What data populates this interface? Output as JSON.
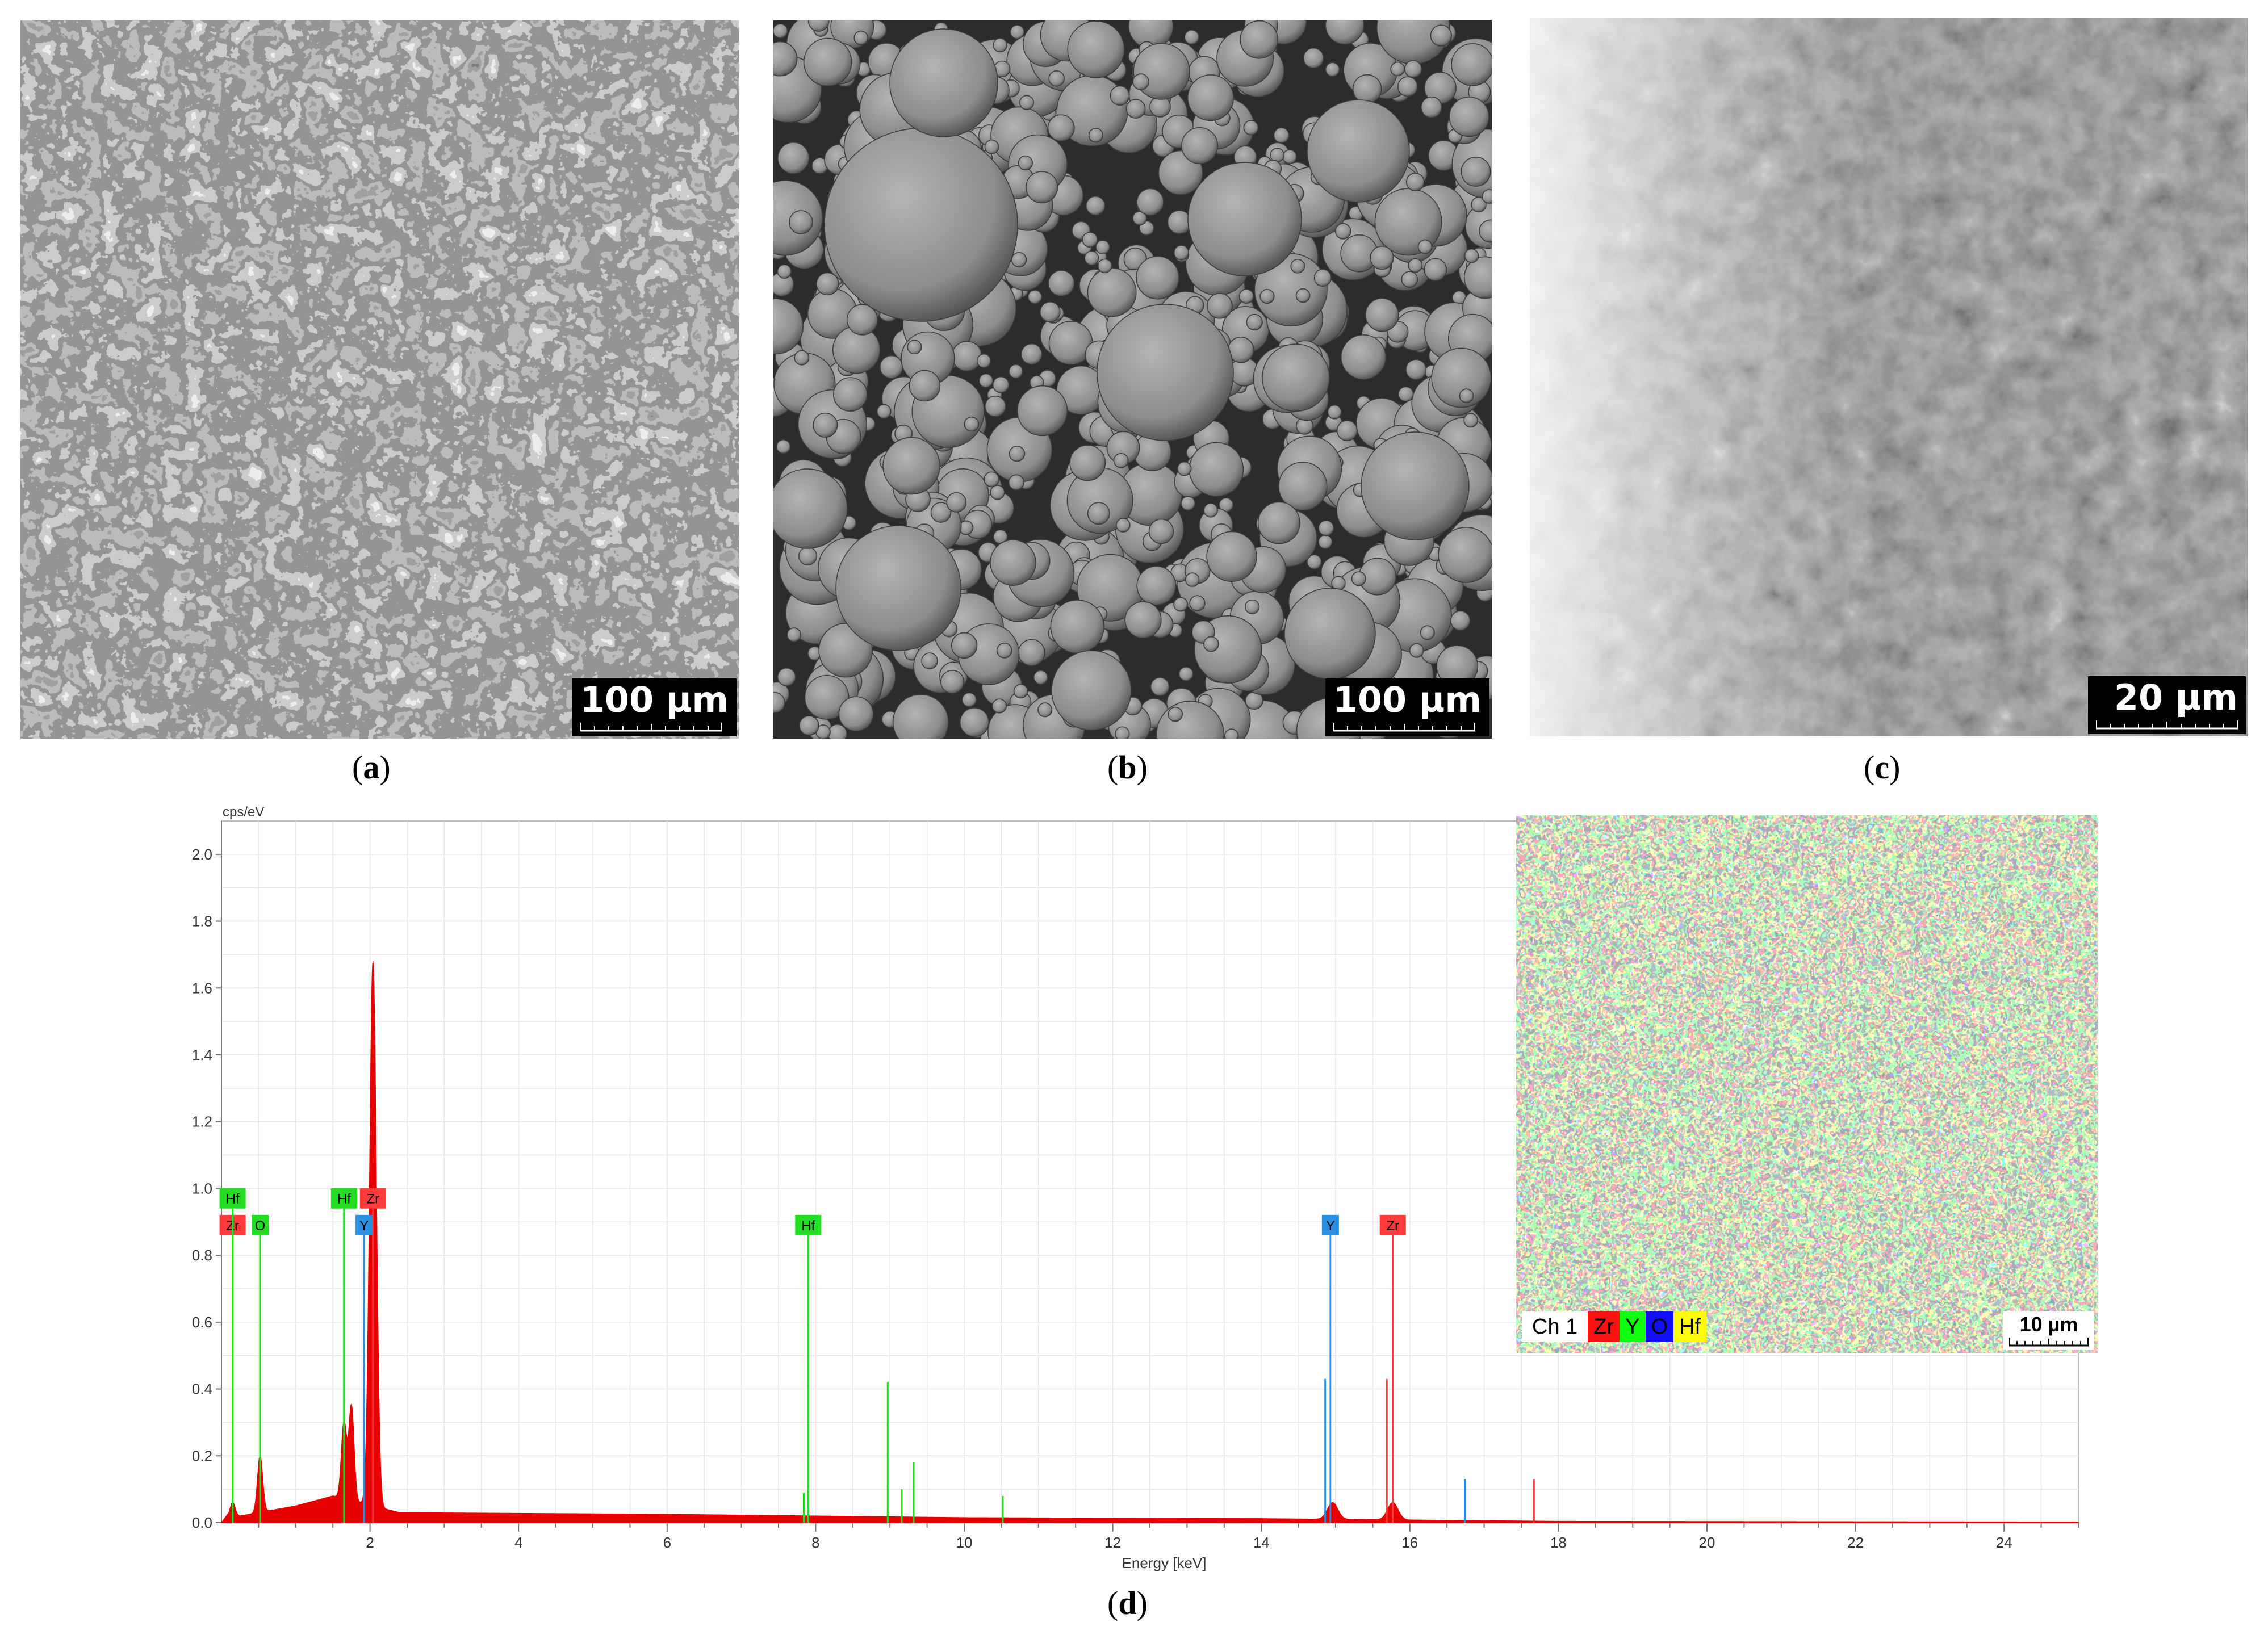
{
  "panels": [
    {
      "id": "a",
      "caption": "a",
      "scale_label": "100 µm"
    },
    {
      "id": "b",
      "caption": "b",
      "scale_label": "100 µm"
    },
    {
      "id": "c",
      "caption": "c",
      "scale_label": "20 µm"
    },
    {
      "id": "d",
      "caption": "d"
    }
  ],
  "chart_data": {
    "type": "line",
    "xlabel": "Energy [keV]",
    "ylabel": "cps/eV",
    "xlim": [
      0,
      25
    ],
    "ylim": [
      0,
      2.1
    ],
    "x_ticks": [
      2,
      4,
      6,
      8,
      10,
      12,
      14,
      16,
      18,
      20,
      22,
      24
    ],
    "y_ticks": [
      0.0,
      0.2,
      0.4,
      0.6,
      0.8,
      1.0,
      1.2,
      1.4,
      1.6,
      1.8,
      2.0
    ],
    "grid": true,
    "series": [
      {
        "color": "#e60000",
        "peaks": [
          {
            "x": 0.15,
            "y": 0.06
          },
          {
            "x": 0.52,
            "y": 0.2
          },
          {
            "x": 1.65,
            "y": 0.3
          },
          {
            "x": 1.75,
            "y": 0.35
          },
          {
            "x": 2.04,
            "y": 1.68
          },
          {
            "x": 14.96,
            "y": 0.06
          },
          {
            "x": 15.77,
            "y": 0.06
          }
        ],
        "background": [
          [
            0.0,
            0.01
          ],
          [
            1.0,
            0.05
          ],
          [
            1.5,
            0.08
          ],
          [
            2.4,
            0.03
          ],
          [
            6.0,
            0.025
          ],
          [
            10.0,
            0.015
          ],
          [
            14.0,
            0.012
          ],
          [
            18.0,
            0.004
          ],
          [
            25.0,
            0.002
          ]
        ]
      }
    ],
    "element_markers": [
      {
        "label": "Zr",
        "x": 0.15,
        "y": 0.86,
        "color": "#ff3b3b",
        "line_color": "#ff3b3b"
      },
      {
        "label": "Hf",
        "x": 0.15,
        "y": 0.94,
        "color": "#22dd22",
        "line_color": "#22dd22"
      },
      {
        "label": "O",
        "x": 0.52,
        "y": 0.86,
        "color": "#22dd22",
        "line_color": "#22dd22"
      },
      {
        "label": "Hf",
        "x": 1.65,
        "y": 0.94,
        "color": "#22dd22",
        "line_color": "#22dd22"
      },
      {
        "label": "Y",
        "x": 1.92,
        "y": 0.86,
        "color": "#2a8fe0",
        "line_color": "#2a8fe0"
      },
      {
        "label": "Zr",
        "x": 2.04,
        "y": 0.94,
        "color": "#ff3b3b",
        "line_color": "#ff3b3b"
      },
      {
        "label": "Hf",
        "x": 7.9,
        "y": 0.86,
        "color": "#22dd22",
        "line_color": "#22dd22"
      },
      {
        "label": "Y",
        "x": 14.93,
        "y": 0.86,
        "color": "#2a8fe0",
        "line_color": "#2a8fe0"
      },
      {
        "label": "Zr",
        "x": 15.77,
        "y": 0.86,
        "color": "#ff3b3b",
        "line_color": "#ff3b3b"
      }
    ],
    "minor_lines": [
      {
        "x": 1.92,
        "y": 0.38,
        "color": "#2a8fe0"
      },
      {
        "x": 7.84,
        "y": 0.09,
        "color": "#22dd22"
      },
      {
        "x": 8.97,
        "y": 0.42,
        "color": "#22dd22"
      },
      {
        "x": 9.16,
        "y": 0.1,
        "color": "#22dd22"
      },
      {
        "x": 9.32,
        "y": 0.18,
        "color": "#22dd22"
      },
      {
        "x": 10.52,
        "y": 0.08,
        "color": "#22dd22"
      },
      {
        "x": 14.86,
        "y": 0.43,
        "color": "#2a8fe0"
      },
      {
        "x": 15.69,
        "y": 0.43,
        "color": "#ff3b3b"
      },
      {
        "x": 16.74,
        "y": 0.13,
        "color": "#2a8fe0"
      },
      {
        "x": 17.67,
        "y": 0.13,
        "color": "#ff3b3b"
      }
    ]
  },
  "map_inset": {
    "legend": [
      "Ch 1",
      "Zr",
      "Y",
      "O",
      "Hf"
    ],
    "scale_label": "10 µm"
  }
}
